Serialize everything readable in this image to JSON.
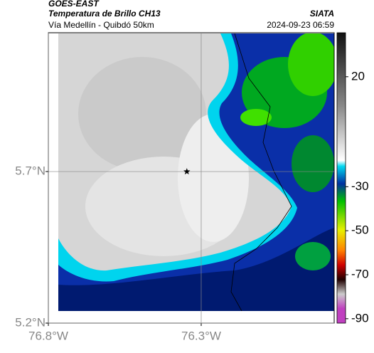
{
  "header": {
    "satellite": "GOES-EAST",
    "product": "Temperatura de Brillo CH13",
    "source": "SIATA",
    "route": "Vía Medellín - Quibdó 50km",
    "timestamp": "2024-09-23 06:59"
  },
  "map": {
    "xlim": [
      -76.8,
      -75.865
    ],
    "ylim": [
      5.2,
      6.158
    ],
    "xticks": [
      {
        "value": -76.8,
        "label": "76.8°W"
      },
      {
        "value": -76.3,
        "label": "76.3°W"
      }
    ],
    "yticks": [
      {
        "value": 5.2,
        "label": "5.2°N"
      },
      {
        "value": 5.7,
        "label": "5.7°N"
      }
    ],
    "grid": true,
    "marker": {
      "lon": -76.347,
      "lat": 5.7
    }
  },
  "colorbar": {
    "lim": [
      -92,
      40
    ],
    "ticks": [
      20,
      -30,
      -50,
      -70,
      -90
    ]
  }
}
